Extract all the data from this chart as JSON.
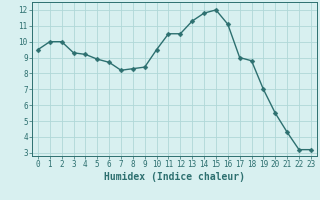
{
  "x": [
    0,
    1,
    2,
    3,
    4,
    5,
    6,
    7,
    8,
    9,
    10,
    11,
    12,
    13,
    14,
    15,
    16,
    17,
    18,
    19,
    20,
    21,
    22,
    23
  ],
  "y": [
    9.5,
    10.0,
    10.0,
    9.3,
    9.2,
    8.9,
    8.7,
    8.2,
    8.3,
    8.4,
    9.5,
    10.5,
    10.5,
    11.3,
    11.8,
    12.0,
    11.1,
    9.0,
    8.8,
    7.0,
    5.5,
    4.3,
    3.2,
    3.2
  ],
  "line_color": "#2d7070",
  "marker": "D",
  "marker_size": 2.5,
  "bg_color": "#d8f0f0",
  "grid_color": "#b0d8d8",
  "xlabel": "Humidex (Indice chaleur)",
  "xlim": [
    -0.5,
    23.5
  ],
  "ylim": [
    2.8,
    12.5
  ],
  "yticks": [
    3,
    4,
    5,
    6,
    7,
    8,
    9,
    10,
    11,
    12
  ],
  "xticks": [
    0,
    1,
    2,
    3,
    4,
    5,
    6,
    7,
    8,
    9,
    10,
    11,
    12,
    13,
    14,
    15,
    16,
    17,
    18,
    19,
    20,
    21,
    22,
    23
  ],
  "tick_label_fontsize": 5.5,
  "xlabel_fontsize": 7,
  "line_width": 1.0
}
